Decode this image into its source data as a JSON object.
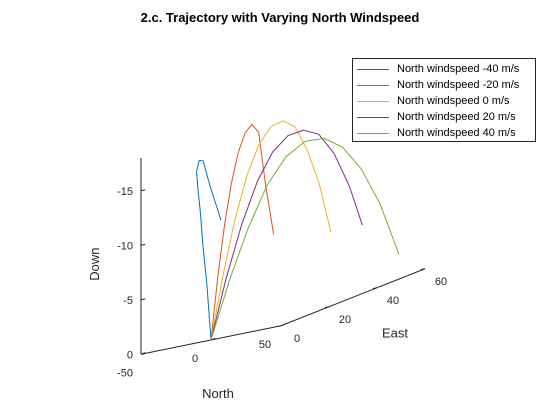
{
  "chart_data": {
    "type": "line",
    "title": "2.c. Trajectory with Varying North Windspeed",
    "xlabel": "North",
    "ylabel": "East",
    "zlabel": "Down",
    "x_ticks": [
      "-50",
      "0",
      "50"
    ],
    "y_ticks": [
      "0",
      "20",
      "40",
      "60"
    ],
    "z_ticks": [
      "0",
      "-5",
      "-10",
      "-15"
    ],
    "xlim": [
      -50,
      50
    ],
    "ylim": [
      0,
      60
    ],
    "zlim": [
      0,
      -18
    ],
    "z_reversed": true,
    "legend_position": "top-right",
    "series": [
      {
        "name": "North windspeed -40 m/s",
        "color": "#0072bd",
        "north": [
          0,
          -8,
          -16,
          -23,
          -30,
          -36,
          -41,
          -45,
          -47,
          -46
        ],
        "east": [
          0,
          3,
          6,
          9,
          12,
          15,
          19,
          23,
          27,
          31
        ],
        "down": [
          0,
          -4.9,
          -8.5,
          -11.5,
          -13.7,
          -15.1,
          -15.9,
          -15.6,
          -13,
          -9.5
        ]
      },
      {
        "name": "North windspeed -20 m/s",
        "color": "#d95319",
        "north": [
          0,
          -2,
          -4,
          -6,
          -8,
          -10,
          -12,
          -14,
          -16,
          -17
        ],
        "east": [
          0,
          4,
          8,
          12,
          16,
          20,
          24,
          28,
          32,
          36
        ],
        "down": [
          0,
          -5.5,
          -10,
          -13.5,
          -16,
          -17.5,
          -18,
          -17,
          -12,
          -7
        ]
      },
      {
        "name": "North windspeed 0 m/s",
        "color": "#edb120",
        "north": [
          0,
          0,
          0,
          0,
          0,
          0,
          0,
          0,
          0,
          0,
          0
        ],
        "east": [
          0,
          5,
          10,
          15,
          20,
          25,
          30,
          35,
          40,
          45,
          50
        ],
        "down": [
          0,
          -5.5,
          -10.2,
          -13.8,
          -16.2,
          -17.4,
          -17.5,
          -16.5,
          -14,
          -10.5,
          -5.5
        ]
      },
      {
        "name": "North windspeed 20 m/s",
        "color": "#7e2f8e",
        "north": [
          0,
          2,
          4,
          6,
          8,
          10,
          12,
          14,
          16,
          18,
          19
        ],
        "east": [
          0,
          5.2,
          10.5,
          15.8,
          21,
          26.2,
          31.5,
          36.8,
          42,
          47.2,
          52
        ],
        "down": [
          0,
          -5.2,
          -9.6,
          -13,
          -15.2,
          -16.2,
          -16.2,
          -15.3,
          -13,
          -9.5,
          -5.5
        ]
      },
      {
        "name": "North windspeed 40 m/s",
        "color": "#77ac30",
        "north": [
          0,
          4,
          8,
          12,
          16,
          20,
          24,
          28,
          32,
          36,
          40
        ],
        "east": [
          0,
          5.5,
          11,
          16.5,
          22,
          27.5,
          33,
          38.5,
          44,
          49.5,
          55
        ],
        "down": [
          0,
          -5,
          -9.2,
          -12.5,
          -14.5,
          -15.3,
          -15,
          -13.6,
          -11,
          -7.2,
          -2
        ]
      }
    ]
  }
}
